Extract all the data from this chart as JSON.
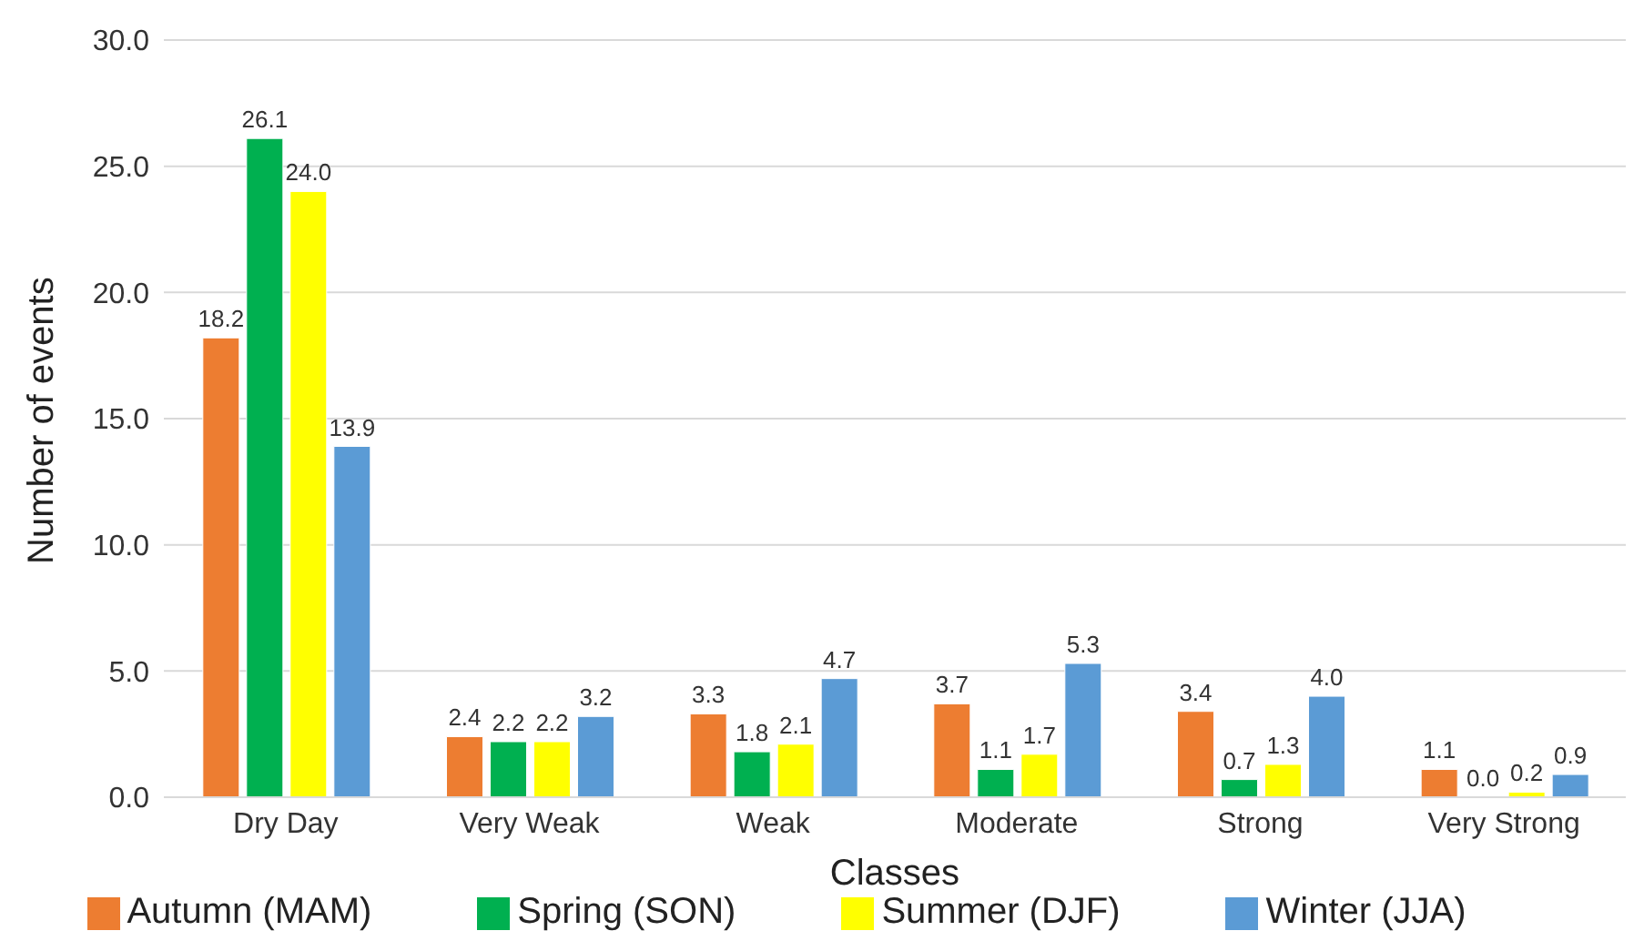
{
  "chart_data": {
    "type": "bar",
    "xlabel": "Classes",
    "ylabel": "Number of events",
    "categories": [
      "Dry Day",
      "Very Weak",
      "Weak",
      "Moderate",
      "Strong",
      "Very Strong"
    ],
    "series": [
      {
        "name": "Autumn (MAM)",
        "color": "#ed7d31",
        "values": [
          18.2,
          2.4,
          3.3,
          3.7,
          3.4,
          1.1
        ],
        "value_labels": [
          "18.2",
          "2.4",
          "3.3",
          "3.7",
          "3.4",
          "1.1"
        ]
      },
      {
        "name": "Spring (SON)",
        "color": "#00b050",
        "values": [
          26.1,
          2.2,
          1.8,
          1.1,
          0.7,
          0.0
        ],
        "value_labels": [
          "26.1",
          "2.2",
          "1.8",
          "1.1",
          "0.7",
          "0.0"
        ]
      },
      {
        "name": "Summer (DJF)",
        "color": "#ffff00",
        "values": [
          24.0,
          2.2,
          2.1,
          1.7,
          1.3,
          0.2
        ],
        "value_labels": [
          "24.0",
          "2.2",
          "2.1",
          "1.7",
          "1.3",
          "0.2"
        ]
      },
      {
        "name": "Winter (JJA)",
        "color": "#5b9bd5",
        "values": [
          13.9,
          3.2,
          4.7,
          5.3,
          4.0,
          0.9
        ],
        "value_labels": [
          "13.9",
          "3.2",
          "4.7",
          "5.3",
          "4.0",
          "0.9"
        ]
      }
    ],
    "ylim": [
      0,
      30
    ],
    "yticks": [
      {
        "value": 0,
        "label": "0.0"
      },
      {
        "value": 5,
        "label": "5.0"
      },
      {
        "value": 10,
        "label": "10.0"
      },
      {
        "value": 15,
        "label": "15.0"
      },
      {
        "value": 20,
        "label": "20.0"
      },
      {
        "value": 25,
        "label": "25.0"
      },
      {
        "value": 30,
        "label": "30.0"
      }
    ],
    "grid": "y",
    "legend": "bottom"
  }
}
